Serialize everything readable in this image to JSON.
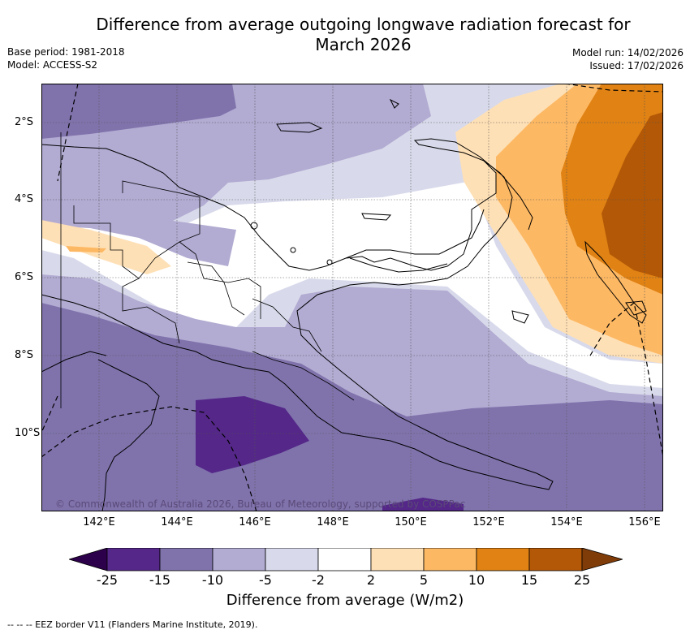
{
  "title_line1": "Difference from average outgoing longwave radiation forecast for",
  "title_line2": "March 2026",
  "base_period": "Base period: 1981-2018",
  "model": "Model: ACCESS-S2",
  "model_run": "Model run: 14/02/2026",
  "issued": "Issued: 17/02/2026",
  "copyright": "© Commonwealth of Australia 2026, Bureau of Meteorology, supported by COSPPac",
  "x_ticks": [
    "142°E",
    "144°E",
    "146°E",
    "148°E",
    "150°E",
    "152°E",
    "154°E",
    "156°E"
  ],
  "y_ticks": [
    "2°S",
    "4°S",
    "6°S",
    "8°S",
    "10°S"
  ],
  "colorbar": {
    "labels": [
      "-25",
      "-15",
      "-10",
      "-5",
      "-2",
      "2",
      "5",
      "10",
      "15",
      "25"
    ],
    "title": "Difference from average (W/m2)",
    "colors": [
      "#2d004b",
      "#542788",
      "#8073ac",
      "#b2abd2",
      "#d8daeb",
      "#ffffff",
      "#fee0b6",
      "#fdb863",
      "#e08214",
      "#b35806",
      "#7f3b08"
    ]
  },
  "footnote": "--  --  -- EEZ border V11 (Flanders Marine Institute, 2019)."
}
